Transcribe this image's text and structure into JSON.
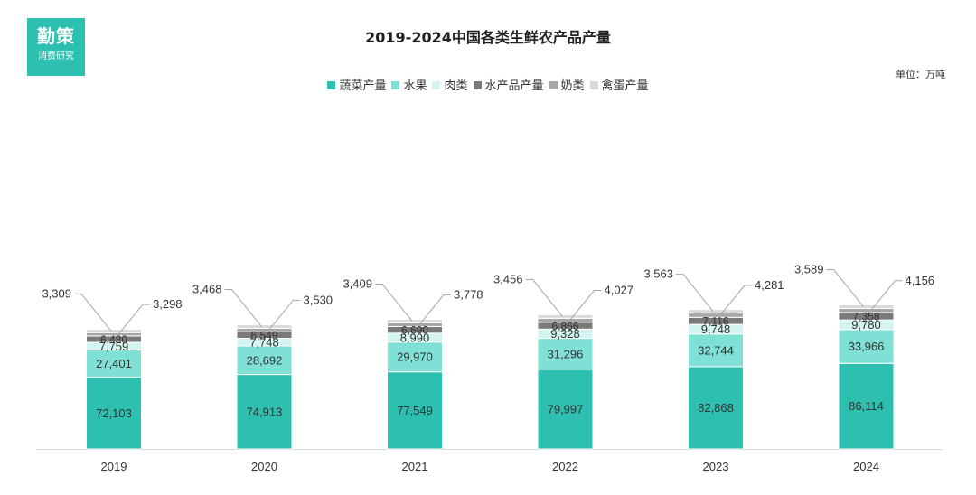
{
  "logo": {
    "line1": "勤策",
    "line2": "消费研究"
  },
  "chart_data": {
    "type": "bar",
    "stacked": true,
    "title": "2019-2024中国各类生鲜农产品产量",
    "unit": "单位：万吨",
    "categories": [
      "2019",
      "2020",
      "2021",
      "2022",
      "2023",
      "2024"
    ],
    "series": [
      {
        "name": "蔬菜产量",
        "color": "#2dbfb0",
        "values": [
          72103,
          74913,
          77549,
          79997,
          82868,
          86114
        ]
      },
      {
        "name": "水果",
        "color": "#7fe0d5",
        "values": [
          27401,
          28692,
          29970,
          31296,
          32744,
          33966
        ]
      },
      {
        "name": "肉类",
        "color": "#d3f4f0",
        "values": [
          7759,
          7748,
          8990,
          9328,
          9748,
          9780
        ]
      },
      {
        "name": "水产品产量",
        "color": "#7a7a7a",
        "values": [
          6480,
          6549,
          6690,
          6866,
          7116,
          7358
        ]
      },
      {
        "name": "奶类",
        "color": "#a6a6a6",
        "values": [
          3298,
          3530,
          3778,
          4027,
          4281,
          4156
        ]
      },
      {
        "name": "禽蛋产量",
        "color": "#d9d9d9",
        "values": [
          3309,
          3468,
          3409,
          3456,
          3563,
          3589
        ]
      }
    ],
    "value_labels": [
      [
        "72,103",
        "74,913",
        "77,549",
        "79,997",
        "82,868",
        "86,114"
      ],
      [
        "27,401",
        "28,692",
        "29,970",
        "31,296",
        "32,744",
        "33,966"
      ],
      [
        "7,759",
        "7,748",
        "8,990",
        "9,328",
        "9,748",
        "9,780"
      ],
      [
        "6,480",
        "6,549",
        "6,690",
        "6,866",
        "7,116",
        "7,358"
      ],
      [
        "3,298",
        "3,530",
        "3,778",
        "4,027",
        "4,281",
        "4,156"
      ],
      [
        "3,309",
        "3,468",
        "3,409",
        "3,456",
        "3,563",
        "3,589"
      ]
    ],
    "ylim": [
      0,
      160000
    ],
    "grid": false,
    "legend_position": "top"
  }
}
